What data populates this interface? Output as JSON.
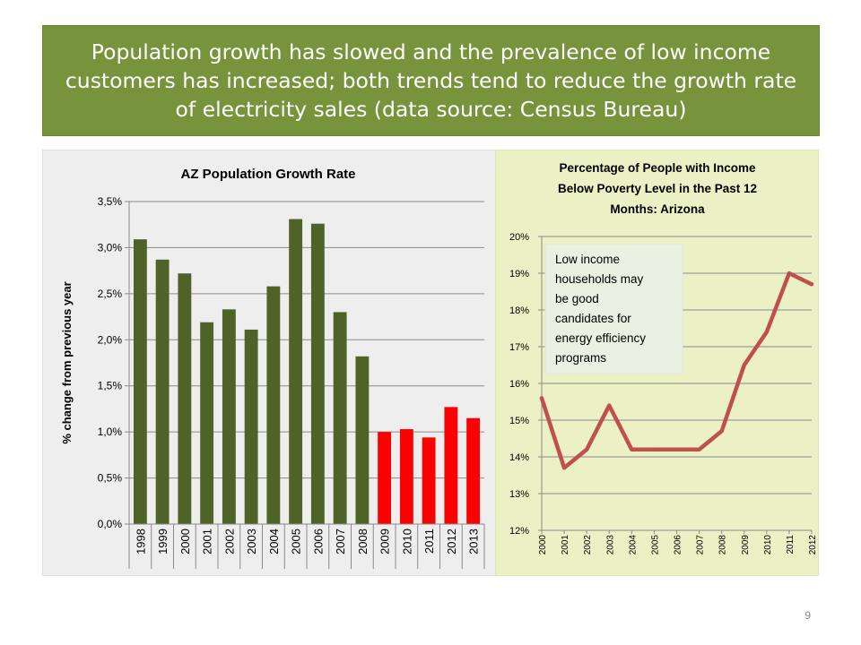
{
  "slide": {
    "title": "Population growth has slowed and the prevalence of low income customers has increased; both trends tend to reduce the growth rate of electricity sales (data source: Census Bureau)",
    "page_number": "9",
    "colors": {
      "banner": "#77933c",
      "left_bg": "#eeeeee",
      "right_bg": "#ebf1c5"
    }
  },
  "chart_data": [
    {
      "type": "bar",
      "title": "AZ Population  Growth Rate",
      "xlabel": "",
      "ylabel": "% change from previous year",
      "categories": [
        "1998",
        "1999",
        "2000",
        "2001",
        "2002",
        "2003",
        "2004",
        "2005",
        "2006",
        "2007",
        "2008",
        "2009",
        "2010",
        "2011",
        "2012",
        "2013"
      ],
      "values": [
        3.09,
        2.87,
        2.72,
        2.19,
        2.33,
        2.11,
        2.58,
        3.31,
        3.26,
        2.3,
        1.82,
        1.0,
        1.03,
        0.94,
        1.27,
        1.15
      ],
      "bar_colors": [
        "#4f6228",
        "#4f6228",
        "#4f6228",
        "#4f6228",
        "#4f6228",
        "#4f6228",
        "#4f6228",
        "#4f6228",
        "#4f6228",
        "#4f6228",
        "#4f6228",
        "#ff0000",
        "#ff0000",
        "#ff0000",
        "#ff0000",
        "#ff0000"
      ],
      "ylim": [
        0,
        3.5
      ],
      "yticks": [
        0,
        0.5,
        1,
        1.5,
        2,
        2.5,
        3,
        3.5
      ],
      "ytick_labels": [
        "0,0%",
        "0,5%",
        "1,0%",
        "1,5%",
        "2,0%",
        "2,5%",
        "3,0%",
        "3,5%"
      ],
      "grid": true
    },
    {
      "type": "line",
      "title_lines": [
        "Percentage of People with Income",
        "Below Poverty Level in the Past 12",
        "Months:  Arizona"
      ],
      "xlabel": "",
      "ylabel": "",
      "x": [
        "2000",
        "2001",
        "2002",
        "2003",
        "2004",
        "2005",
        "2006",
        "2007",
        "2008",
        "2009",
        "2010",
        "2011",
        "2012"
      ],
      "series": [
        {
          "values": [
            15.6,
            13.7,
            14.2,
            15.4,
            14.2,
            14.2,
            14.2,
            14.2,
            14.7,
            16.5,
            17.4,
            19.0,
            18.7
          ],
          "color": "#c0504d"
        }
      ],
      "ylim": [
        12,
        20
      ],
      "yticks": [
        12,
        13,
        14,
        15,
        16,
        17,
        18,
        19,
        20
      ],
      "ytick_labels": [
        "12%",
        "13%",
        "14%",
        "15%",
        "16%",
        "17%",
        "18%",
        "19%",
        "20%"
      ],
      "grid": true,
      "annotation": [
        "Low income",
        "households may",
        "be good",
        "candidates for",
        "energy efficiency",
        "programs"
      ]
    }
  ]
}
